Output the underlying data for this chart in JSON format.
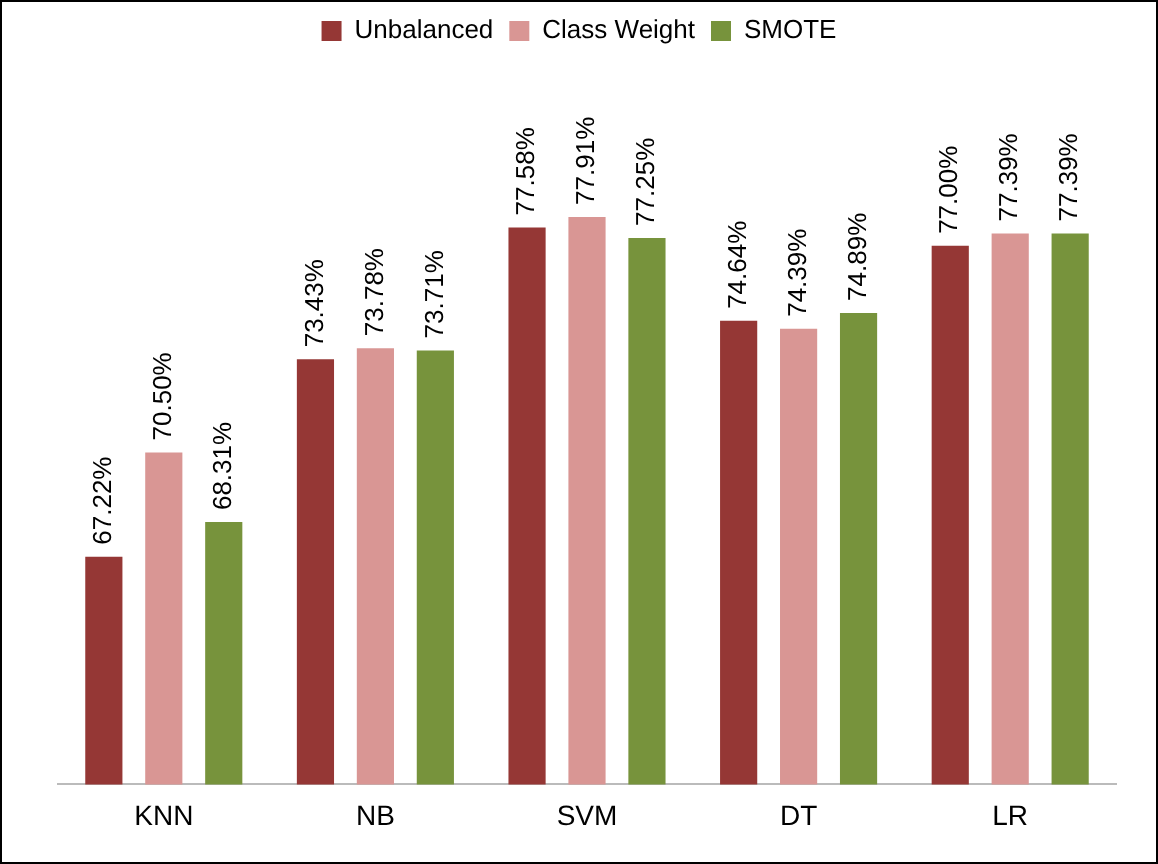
{
  "chart_data": {
    "type": "bar",
    "categories": [
      "KNN",
      "NB",
      "SVM",
      "DT",
      "LR"
    ],
    "series": [
      {
        "name": "Unbalanced",
        "color": "#953735",
        "values": [
          67.22,
          73.43,
          77.58,
          74.64,
          77.0
        ],
        "value_labels": [
          "67.22%",
          "73.43%",
          "77.58%",
          "74.64%",
          "77.00%"
        ]
      },
      {
        "name": "Class Weight",
        "color": "#d99694",
        "values": [
          70.5,
          73.78,
          77.91,
          74.39,
          77.39
        ],
        "value_labels": [
          "70.50%",
          "73.78%",
          "77.91%",
          "74.39%",
          "77.39%"
        ]
      },
      {
        "name": "SMOTE",
        "color": "#77933c",
        "values": [
          68.31,
          73.71,
          77.25,
          74.89,
          77.39
        ],
        "value_labels": [
          "68.31%",
          "73.71%",
          "77.25%",
          "74.89%",
          "77.39%"
        ]
      }
    ],
    "grid": false,
    "legend": "top"
  }
}
